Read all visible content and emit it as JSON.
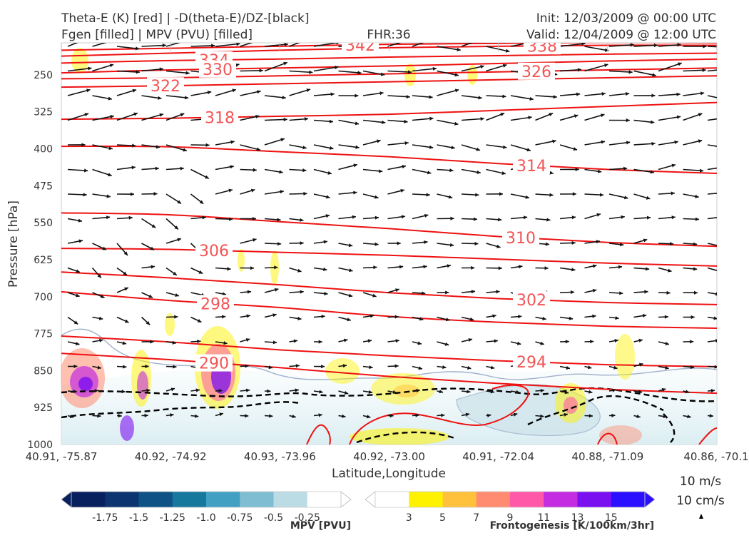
{
  "header": {
    "title_left_1": "Theta-E (K) [red] | -D(theta-E)/DZ-[black]",
    "title_left_2": "Fgen [filled] | MPV (PVU) [filled]",
    "fhr": "FHR:36",
    "init": "Init: 12/03/2009 @ 00:00 UTC",
    "valid": "Valid: 12/04/2009 @ 12:00 UTC"
  },
  "chart_data": {
    "type": "cross-section",
    "xlabel": "Latitude,Longitude",
    "ylabel": "Pressure [hPa]",
    "x_ticks": [
      "40.91, -75.87",
      "40.92, -74.92",
      "40.93, -73.96",
      "40.92, -73.00",
      "40.91, -72.04",
      "40.88, -71.09",
      "40.86, -70.1"
    ],
    "y_ticks": [
      250,
      325,
      400,
      475,
      550,
      625,
      700,
      775,
      850,
      925,
      1000
    ],
    "y_range": [
      1000,
      185
    ],
    "theta_e_contours": [
      {
        "label": "342",
        "levels": [
          200,
          196,
          192,
          188,
          186,
          184,
          185
        ]
      },
      {
        "label": "338",
        "levels": [
          212,
          206,
          200,
          195,
          192,
          190,
          190
        ]
      },
      {
        "label": "334",
        "levels": [
          226,
          221,
          218,
          214,
          211,
          208,
          206
        ]
      },
      {
        "label": "330",
        "levels": [
          246,
          240,
          236,
          232,
          227,
          222,
          218
        ]
      },
      {
        "label": "326",
        "levels": [
          258,
          256,
          252,
          248,
          244,
          240,
          236
        ]
      },
      {
        "label": "322",
        "levels": [
          275,
          272,
          268,
          264,
          260,
          256,
          252
        ]
      },
      {
        "label": "318",
        "levels": [
          340,
          338,
          334,
          330,
          322,
          314,
          306
        ]
      },
      {
        "label": "314",
        "levels": [
          395,
          396,
          406,
          416,
          430,
          442,
          450
        ]
      },
      {
        "label": "310",
        "levels": [
          530,
          534,
          548,
          562,
          578,
          590,
          598
        ]
      },
      {
        "label": "306",
        "levels": [
          602,
          604,
          610,
          616,
          624,
          632,
          638
        ]
      },
      {
        "label": "302",
        "levels": [
          650,
          662,
          676,
          692,
          704,
          712,
          716
        ]
      },
      {
        "label": "298",
        "levels": [
          690,
          708,
          722,
          740,
          752,
          760,
          764
        ]
      },
      {
        "label": "294",
        "levels": [
          780,
          792,
          808,
          820,
          830,
          838,
          842
        ]
      },
      {
        "label": "290",
        "levels": [
          815,
          828,
          844,
          862,
          876,
          888,
          896
        ]
      }
    ],
    "mpv_colorbar": {
      "label": "MPV [PVU]",
      "ticks": [
        "-1.75",
        "-1.5",
        "-1.25",
        "-1.0",
        "-0.75",
        "-0.5",
        "-0.25"
      ],
      "colors": [
        "#08205e",
        "#0b3470",
        "#0e5286",
        "#17789e",
        "#42a1c2",
        "#7fbdd3",
        "#bcdce5",
        "#ffffff"
      ]
    },
    "fgen_colorbar": {
      "label": "Frontogenesis [K/100km/3hr]",
      "ticks": [
        "3",
        "5",
        "7",
        "9",
        "11",
        "13",
        "15"
      ],
      "colors": [
        "#ffffff",
        "#fff200",
        "#ffc13b",
        "#ff8c70",
        "#ff58a8",
        "#c32ce0",
        "#7a10f0",
        "#2a10ff"
      ]
    },
    "wind_key": {
      "line1": "10 m/s",
      "line2": "10 cm/s"
    }
  }
}
